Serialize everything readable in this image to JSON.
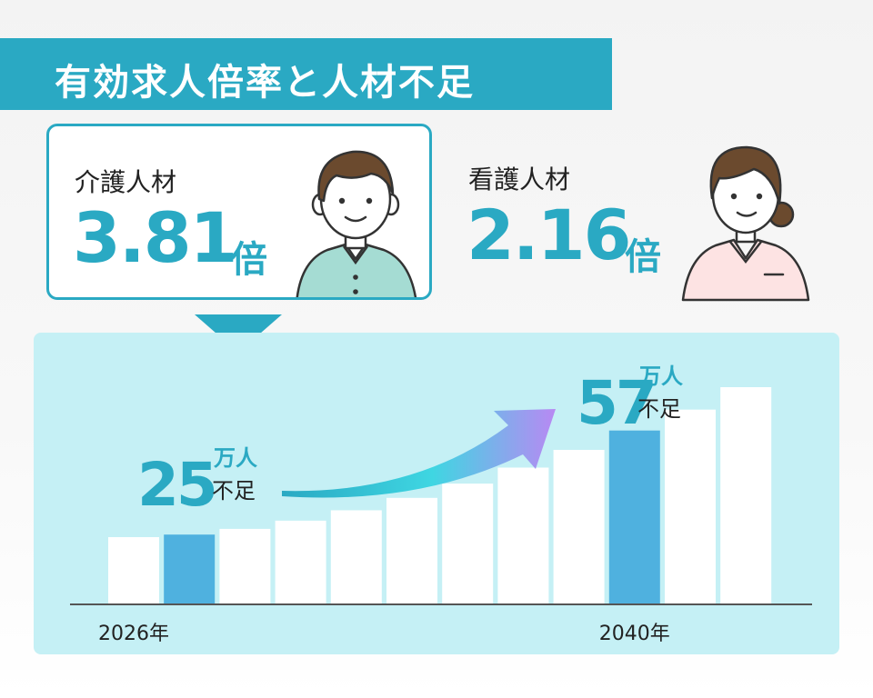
{
  "header": {
    "title": "有効求人倍率と人材不足"
  },
  "cards": [
    {
      "label": "介護人材",
      "value": "3.81",
      "unit": "倍"
    },
    {
      "label": "看護人材",
      "value": "2.16",
      "unit": "倍"
    }
  ],
  "colors": {
    "accent": "#2aa9c3",
    "highlight_bar": "#4fb1df",
    "bar": "#ffffff",
    "panel_bg": "#c5f0f5",
    "care_shirt": "#a5dcd3",
    "nurse_shirt": "#fde3e3"
  },
  "icons": [
    "male-care-worker-illustration",
    "female-nurse-illustration",
    "growth-arrow-icon"
  ],
  "chart_data": {
    "type": "bar",
    "categories": [
      "2026年",
      "",
      "",
      "",
      "",
      "",
      "",
      "",
      "",
      "2040年",
      "",
      ""
    ],
    "series": [
      {
        "values": [
          null,
          25,
          null,
          null,
          null,
          null,
          null,
          null,
          null,
          57,
          null,
          null
        ]
      }
    ],
    "highlighted": [
      1,
      9
    ],
    "annotations": [
      {
        "value": "25",
        "unit": "万人",
        "note": "不足"
      },
      {
        "value": "57",
        "unit": "万人",
        "note": "不足"
      }
    ],
    "x_tick_labels": [
      "2026年",
      "2040年"
    ],
    "trend": "increasing"
  }
}
